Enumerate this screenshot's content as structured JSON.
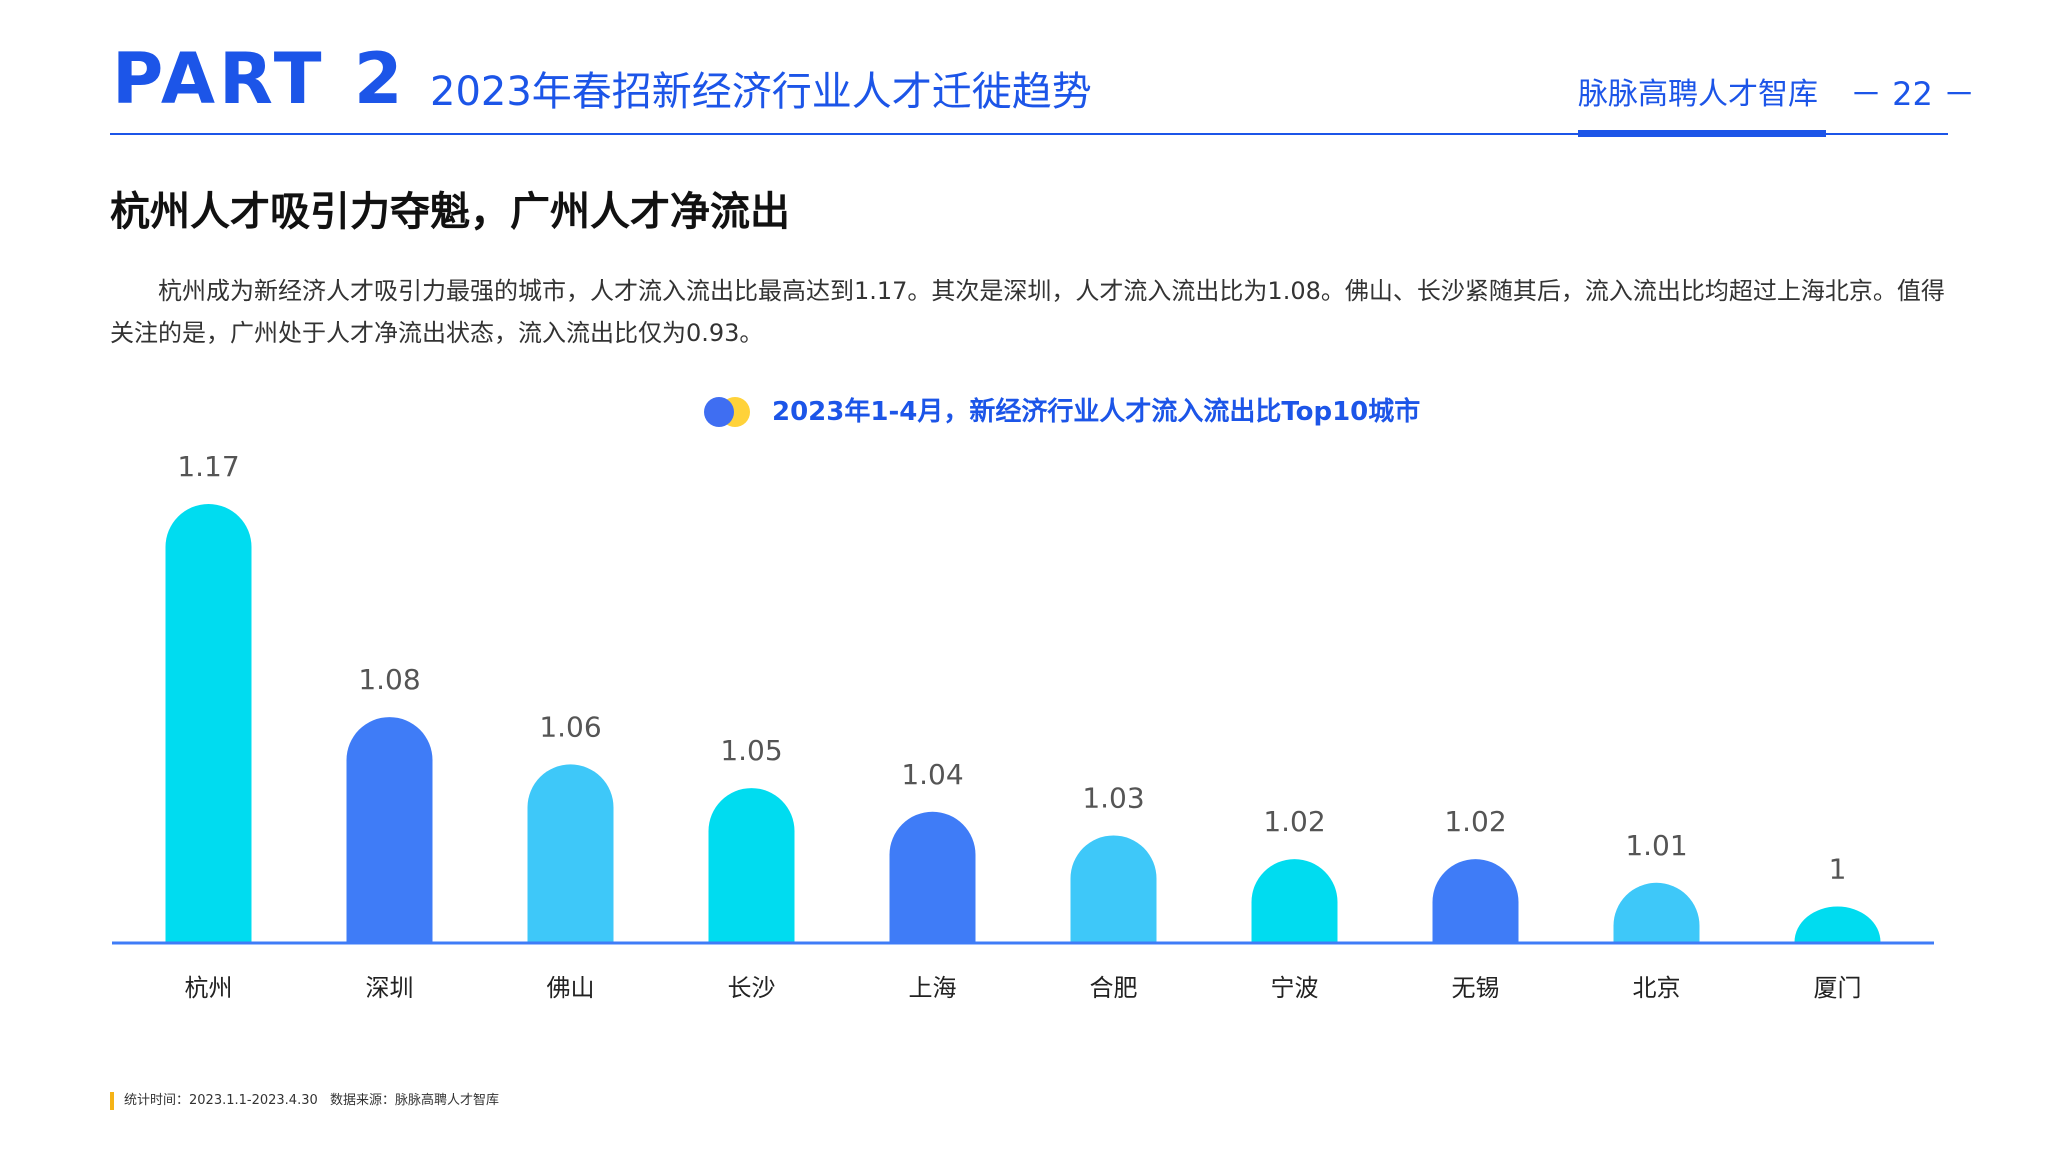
{
  "header": {
    "part": "PART 2",
    "title": "2023年春招新经济行业人才迁徙趋势",
    "brand": "脉脉高聘人才智库",
    "page_number": "－ 22 －"
  },
  "section": {
    "title": "杭州人才吸引力夺魁，广州人才净流出",
    "paragraph": "杭州成为新经济人才吸引力最强的城市，人才流入流出比最高达到1.17。其次是深圳，人才流入流出比为1.08。佛山、长沙紧随其后，流入流出比均超过上海北京。值得关注的是，广州处于人才净流出状态，流入流出比仅为0.93。"
  },
  "colors": {
    "brand_blue": "#1c55e8",
    "bar_cyan": "#00dcf0",
    "bar_blue": "#3f7cf7",
    "bar_light": "#3ec8f9",
    "axis": "#3f7cf7",
    "legend_yellow": "#ffd23a",
    "legend_blue": "#3f6ef2"
  },
  "chart_data": {
    "type": "bar",
    "title": "2023年1-4月，新经济行业人才流入流出比Top10城市",
    "categories": [
      "杭州",
      "深圳",
      "佛山",
      "长沙",
      "上海",
      "合肥",
      "宁波",
      "无锡",
      "北京",
      "厦门"
    ],
    "values": [
      1.17,
      1.08,
      1.06,
      1.05,
      1.04,
      1.03,
      1.02,
      1.02,
      1.01,
      1
    ],
    "value_labels": [
      "1.17",
      "1.08",
      "1.06",
      "1.05",
      "1.04",
      "1.03",
      "1.02",
      "1.02",
      "1.01",
      "1"
    ],
    "bar_colors": [
      "#00dcf0",
      "#3f7cf7",
      "#3ec8f9",
      "#00dcf0",
      "#3f7cf7",
      "#3ec8f9",
      "#00dcf0",
      "#3f7cf7",
      "#3ec8f9",
      "#00dcf0"
    ],
    "xlabel": "",
    "ylabel": "",
    "ylim": [
      0.985,
      1.185
    ],
    "grid": false,
    "legend": "none"
  },
  "footer": {
    "stat_time": "统计时间：2023.1.1-2023.4.30",
    "source": "数据来源：脉脉高聘人才智库"
  }
}
